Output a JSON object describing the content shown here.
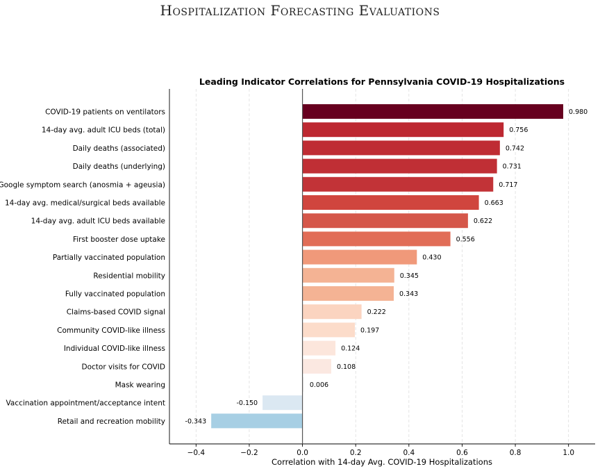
{
  "page_title": "Hospitalization Forecasting Evaluations",
  "chart_data": {
    "type": "bar",
    "orientation": "horizontal",
    "title": "Leading Indicator Correlations for Pennsylvania COVID-19 Hospitalizations",
    "xlabel": "Correlation with 14-day Avg. COVID-19 Hospitalizations",
    "ylabel": "",
    "xlim": [
      -0.5,
      1.1
    ],
    "xticks": [
      -0.4,
      -0.2,
      0.0,
      0.2,
      0.4,
      0.6,
      0.8,
      1.0
    ],
    "xtick_labels": [
      "−0.4",
      "−0.2",
      "0.0",
      "0.2",
      "0.4",
      "0.6",
      "0.8",
      "1.0"
    ],
    "grid": "vertical dashed",
    "categories": [
      "COVID-19 patients on ventilators",
      "14-day avg. adult ICU beds (total)",
      "Daily deaths (associated)",
      "Daily deaths (underlying)",
      "Google symptom search (anosmia + ageusia)",
      "14-day avg. medical/surgical beds available",
      "14-day avg. adult ICU beds available",
      "First booster dose uptake",
      "Partially vaccinated population",
      "Residential mobility",
      "Fully vaccinated population",
      "Claims-based COVID signal",
      "Community COVID-like illness",
      "Individual COVID-like illness",
      "Doctor visits for COVID",
      "Mask wearing",
      "Vaccination appointment/acceptance intent",
      "Retail and recreation mobility"
    ],
    "values": [
      0.98,
      0.756,
      0.742,
      0.731,
      0.717,
      0.663,
      0.622,
      0.556,
      0.43,
      0.345,
      0.343,
      0.222,
      0.197,
      0.124,
      0.108,
      0.006,
      -0.15,
      -0.343
    ],
    "value_labels": [
      "0.980",
      "0.756",
      "0.742",
      "0.731",
      "0.717",
      "0.663",
      "0.622",
      "0.556",
      "0.430",
      "0.345",
      "0.343",
      "0.222",
      "0.197",
      "0.124",
      "0.108",
      "0.006",
      "-0.150",
      "-0.343"
    ],
    "bar_colors": [
      "#67001f",
      "#bd2831",
      "#bf2c33",
      "#c02f35",
      "#c23337",
      "#d0453e",
      "#d5574a",
      "#e16d57",
      "#f0997a",
      "#f4b394",
      "#f4b394",
      "#fbd4c0",
      "#fcdcca",
      "#fce6dc",
      "#fbe8e1",
      "#f7f6f6",
      "#dbe8f2",
      "#a7cfe4"
    ]
  }
}
